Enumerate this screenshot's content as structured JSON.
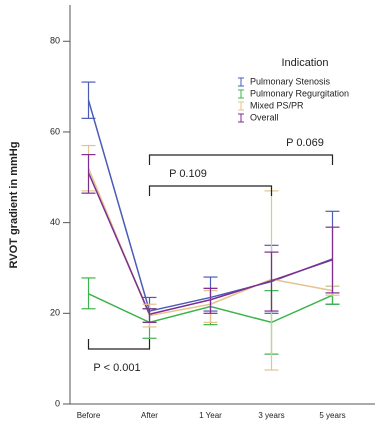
{
  "chart_data": {
    "type": "line",
    "y_label": "RVOT gradient in mmHg",
    "categories": [
      "Before",
      "After",
      "1 Year",
      "3 years",
      "5 years"
    ],
    "ylim": [
      0,
      88
    ],
    "yticks": [
      0,
      20,
      40,
      60,
      80
    ],
    "legend_title": "Indication",
    "legend_position": "upper right",
    "series": [
      {
        "name": "Pulmonary Stenosis",
        "color": "#4a5cb8",
        "values": [
          67,
          20.5,
          23.5,
          27,
          32
        ],
        "lower": [
          63,
          18,
          20.5,
          20,
          22
        ],
        "upper": [
          71,
          23.5,
          28,
          35,
          42.5
        ]
      },
      {
        "name": "Pulmonary Regurgitation",
        "color": "#3cb44b",
        "values": [
          24.3,
          18,
          21.5,
          18,
          24
        ],
        "lower": [
          21,
          14.5,
          17.5,
          11,
          22
        ],
        "upper": [
          27.8,
          21,
          25.5,
          25,
          26
        ]
      },
      {
        "name": "Mixed PS/PR",
        "color": "#e3c48e",
        "values": [
          52,
          19.5,
          22,
          27.5,
          25
        ],
        "lower": [
          47,
          17,
          18,
          7.5,
          24
        ],
        "upper": [
          57,
          22,
          25,
          47,
          26
        ]
      },
      {
        "name": "Overall",
        "color": "#7d2f8f",
        "values": [
          51,
          19.8,
          23,
          27.2,
          31.8
        ],
        "lower": [
          46.5,
          18,
          20,
          20.5,
          24.5
        ],
        "upper": [
          55,
          21,
          25.5,
          33.5,
          39
        ]
      }
    ],
    "annotations": [
      "P < 0.001",
      "P 0.109",
      "P 0.069"
    ]
  }
}
